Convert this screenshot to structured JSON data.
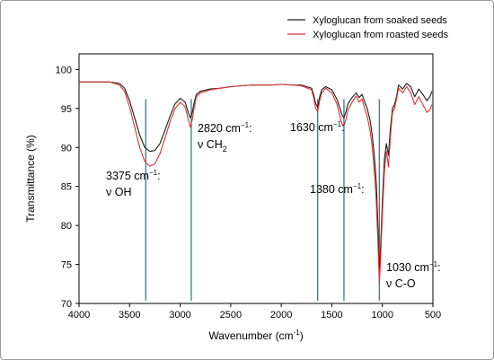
{
  "chart_data": {
    "type": "line",
    "xlabel": "Wavenumber (cm",
    "xlabel_sup": "-1",
    "xlabel_end": ")",
    "ylabel": "Transmittance (%)",
    "xlim": [
      4000,
      500
    ],
    "ylim": [
      70,
      102
    ],
    "xticks": [
      4000,
      3500,
      3000,
      2500,
      2000,
      1500,
      1000,
      500
    ],
    "yticks": [
      70,
      75,
      80,
      85,
      90,
      95,
      100
    ],
    "legend_position": "top-right",
    "series": [
      {
        "name": "Xyloglucan from soaked seeds",
        "color": "#1a1a1a",
        "x": [
          4000,
          3700,
          3600,
          3550,
          3500,
          3450,
          3400,
          3350,
          3300,
          3250,
          3200,
          3150,
          3100,
          3050,
          3000,
          2950,
          2920,
          2900,
          2880,
          2860,
          2840,
          2800,
          2700,
          2600,
          2500,
          2400,
          2300,
          2200,
          2100,
          2000,
          1900,
          1800,
          1700,
          1680,
          1660,
          1640,
          1620,
          1600,
          1560,
          1500,
          1450,
          1420,
          1400,
          1380,
          1360,
          1340,
          1300,
          1260,
          1230,
          1200,
          1180,
          1150,
          1120,
          1100,
          1080,
          1060,
          1040,
          1030,
          1020,
          1000,
          980,
          960,
          940,
          920,
          900,
          880,
          860,
          840,
          800,
          760,
          720,
          680,
          640,
          600,
          560,
          530,
          510
        ],
        "y": [
          98.4,
          98.4,
          98.2,
          97.6,
          96.0,
          93.8,
          91.6,
          90.0,
          89.5,
          89.6,
          90.5,
          92.2,
          94.0,
          95.6,
          96.3,
          95.8,
          94.5,
          93.8,
          94.5,
          95.8,
          96.8,
          97.2,
          97.5,
          97.6,
          97.8,
          97.9,
          98.0,
          98.0,
          98.0,
          98.1,
          98.0,
          98.0,
          97.6,
          96.8,
          95.6,
          95.2,
          96.5,
          97.4,
          97.8,
          97.4,
          96.2,
          95.0,
          94.2,
          93.8,
          94.6,
          95.6,
          96.4,
          97.0,
          96.4,
          96.8,
          96.0,
          95.0,
          93.4,
          91.5,
          89.0,
          85.5,
          78.5,
          73.7,
          76.5,
          83.0,
          88.5,
          90.5,
          89.0,
          92.5,
          95.0,
          95.5,
          96.5,
          98.0,
          97.5,
          98.2,
          97.8,
          96.5,
          97.5,
          96.8,
          96.0,
          96.5,
          97.2
        ]
      },
      {
        "name": "Xyloglucan from roasted seeds",
        "color": "#e03030",
        "x": [
          4000,
          3700,
          3600,
          3550,
          3500,
          3450,
          3400,
          3350,
          3300,
          3250,
          3200,
          3150,
          3100,
          3050,
          3000,
          2950,
          2920,
          2900,
          2880,
          2860,
          2840,
          2800,
          2700,
          2600,
          2500,
          2400,
          2300,
          2200,
          2100,
          2000,
          1900,
          1800,
          1700,
          1680,
          1660,
          1640,
          1620,
          1600,
          1560,
          1500,
          1450,
          1420,
          1400,
          1380,
          1360,
          1340,
          1300,
          1260,
          1230,
          1200,
          1180,
          1150,
          1120,
          1100,
          1080,
          1060,
          1040,
          1030,
          1020,
          1000,
          980,
          960,
          940,
          920,
          900,
          880,
          860,
          840,
          800,
          760,
          720,
          680,
          640,
          600,
          560,
          530,
          510
        ],
        "y": [
          98.4,
          98.4,
          98.0,
          97.2,
          95.2,
          92.6,
          90.0,
          88.2,
          87.6,
          87.9,
          89.2,
          91.2,
          93.3,
          95.0,
          95.8,
          95.2,
          93.6,
          92.6,
          93.6,
          95.2,
          96.5,
          97.0,
          97.4,
          97.6,
          97.8,
          97.9,
          98.0,
          98.0,
          98.0,
          98.1,
          98.0,
          97.9,
          97.4,
          96.4,
          95.0,
          94.6,
          96.0,
          97.0,
          97.6,
          97.0,
          95.6,
          94.0,
          93.0,
          92.8,
          93.6,
          94.8,
          95.8,
          96.6,
          95.8,
          96.2,
          95.2,
          94.0,
          92.0,
          90.0,
          87.0,
          83.0,
          76.5,
          72.5,
          75.0,
          81.5,
          87.0,
          89.5,
          87.5,
          91.5,
          94.5,
          95.0,
          96.2,
          97.6,
          97.0,
          97.8,
          97.0,
          95.5,
          96.5,
          95.5,
          94.5,
          94.8,
          95.5
        ]
      }
    ],
    "marker_lines": [
      3340,
      2890,
      1640,
      1380,
      1030
    ],
    "annotations": [
      {
        "line1": "3375 cm",
        "line1_sup": "−1",
        "line1_end": ":",
        "line2_pre": "ν",
        "line2": " OH",
        "line2_sub": ""
      },
      {
        "line1": "2820 cm",
        "line1_sup": "−1",
        "line1_end": ":",
        "line2_pre": "ν",
        "line2": " CH",
        "line2_sub": "2"
      },
      {
        "line1": "1630 cm",
        "line1_sup": "−1",
        "line1_end": ":",
        "line2_pre": "",
        "line2": "",
        "line2_sub": ""
      },
      {
        "line1": "1380 cm",
        "line1_sup": "−1",
        "line1_end": ":",
        "line2_pre": "",
        "line2": "",
        "line2_sub": ""
      },
      {
        "line1": "1030 cm",
        "line1_sup": "−1",
        "line1_end": ":",
        "line2_pre": "ν",
        "line2": " C-O",
        "line2_sub": ""
      }
    ],
    "marker_color": "#2e7f8f"
  }
}
